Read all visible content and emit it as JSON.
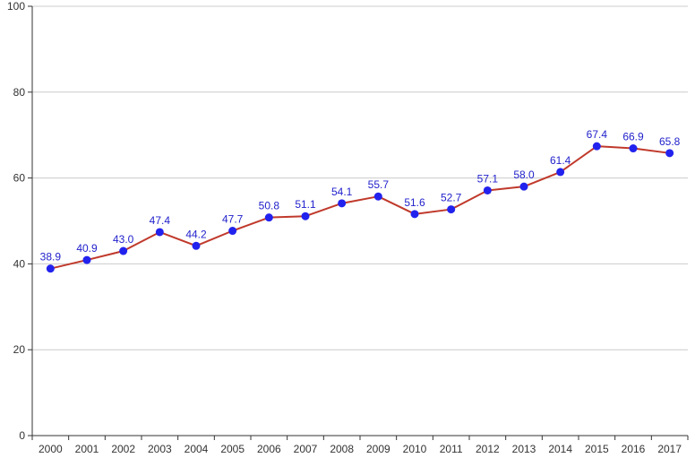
{
  "chart_data": {
    "type": "line",
    "title": "",
    "xlabel": "",
    "ylabel": "",
    "categories": [
      "2000",
      "2001",
      "2002",
      "2003",
      "2004",
      "2005",
      "2006",
      "2007",
      "2008",
      "2009",
      "2010",
      "2011",
      "2012",
      "2013",
      "2014",
      "2015",
      "2016",
      "2017"
    ],
    "series": [
      {
        "values": [
          38.9,
          40.9,
          43.0,
          47.4,
          44.2,
          47.7,
          50.8,
          51.1,
          54.1,
          55.7,
          51.6,
          52.7,
          57.1,
          58.0,
          61.4,
          67.4,
          66.9,
          65.8
        ],
        "labels": [
          "38.9",
          "40.9",
          "43.0",
          "47.4",
          "44.2",
          "47.7",
          "50.8",
          "51.1",
          "54.1",
          "55.7",
          "51.6",
          "52.7",
          "57.1",
          "58.0",
          "61.4",
          "67.4",
          "66.9",
          "65.8"
        ],
        "line_color": "#c0392b",
        "marker_color": "#2222ee"
      }
    ],
    "ylim": [
      0,
      100
    ],
    "yticks": [
      "0",
      "20",
      "40",
      "60",
      "80",
      "100"
    ],
    "grid": "horizontal",
    "legend": "none"
  }
}
